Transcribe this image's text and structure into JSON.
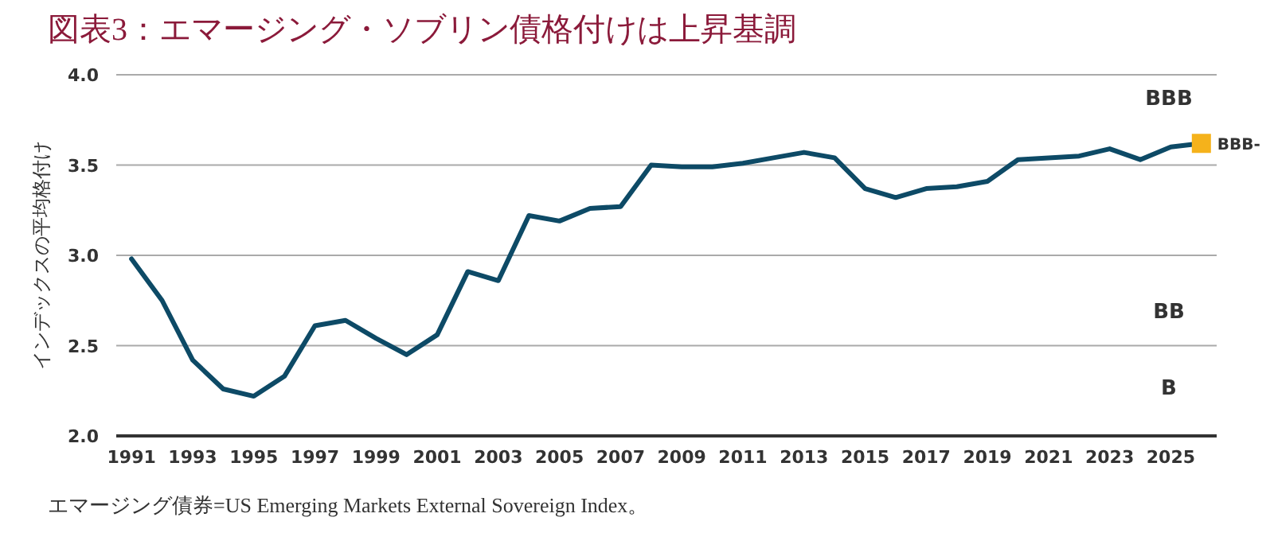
{
  "chart_data": {
    "type": "line",
    "title": "図表3：エマージング・ソブリン債格付けは上昇基調",
    "ylabel": "インデックスの平均格付け",
    "x": [
      1991,
      1992,
      1993,
      1994,
      1995,
      1996,
      1997,
      1998,
      1999,
      2000,
      2001,
      2002,
      2003,
      2004,
      2005,
      2006,
      2007,
      2008,
      2009,
      2010,
      2011,
      2012,
      2013,
      2014,
      2015,
      2016,
      2017,
      2018,
      2019,
      2020,
      2021,
      2022,
      2023,
      2024,
      2025,
      2026
    ],
    "series": [
      {
        "color": "#0d4a66",
        "values": [
          2.98,
          2.75,
          2.42,
          2.26,
          2.22,
          2.33,
          2.61,
          2.64,
          2.54,
          2.45,
          2.56,
          2.91,
          2.86,
          3.22,
          3.19,
          3.26,
          3.27,
          3.5,
          3.49,
          3.49,
          3.51,
          3.54,
          3.57,
          3.54,
          3.37,
          3.32,
          3.37,
          3.38,
          3.41,
          3.53,
          3.54,
          3.55,
          3.59,
          3.53,
          3.6,
          3.62
        ]
      },
      {
        "type": "scatter",
        "name": "BBB-",
        "marker": "square",
        "color": "#f5b21b",
        "x": [
          2026
        ],
        "values": [
          3.62
        ]
      }
    ],
    "xlim": [
      1990.5,
      2026.5
    ],
    "ylim": [
      2.0,
      4.0
    ],
    "xticks": [
      1991,
      1993,
      1995,
      1997,
      1999,
      2001,
      2003,
      2005,
      2007,
      2009,
      2011,
      2013,
      2015,
      2017,
      2019,
      2021,
      2023,
      2025
    ],
    "yticks": [
      {
        "value": 2.0,
        "label": "2.0"
      },
      {
        "value": 2.5,
        "label": "2.5"
      },
      {
        "value": 3.0,
        "label": "3.0"
      },
      {
        "value": 3.5,
        "label": "3.5"
      },
      {
        "value": 4.0,
        "label": "4.0"
      }
    ],
    "grid": "y",
    "annotations": [
      "BBB",
      "BB",
      "B",
      "エマージング債券=US Emerging Markets External Sovereign Index。"
    ]
  }
}
